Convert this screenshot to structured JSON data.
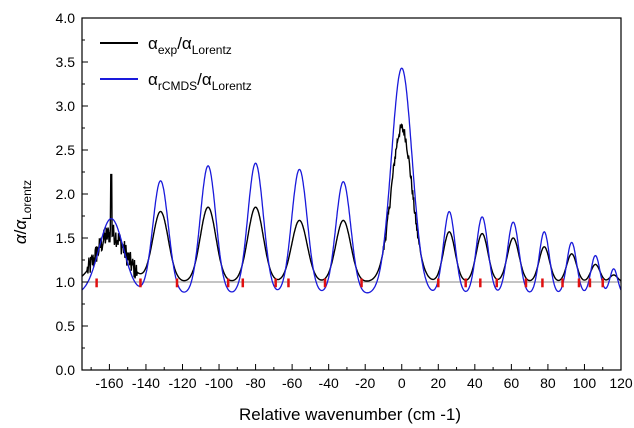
{
  "chart_data": {
    "type": "line",
    "title": "",
    "xlabel": "Relative wavenumber (cm -1)",
    "ylabel": "α/α_Lorentz",
    "xlim": [
      -175,
      120
    ],
    "ylim": [
      0.0,
      4.0
    ],
    "x_ticks": [
      -160,
      -140,
      -120,
      -100,
      -80,
      -60,
      -40,
      -20,
      0,
      20,
      40,
      60,
      80,
      100,
      120
    ],
    "x_tick_labels": [
      "-160",
      "-140",
      "-120",
      "-100",
      "-80",
      "-60",
      "-40",
      "-20",
      "0",
      "20",
      "40",
      "60",
      "80",
      "100",
      "120"
    ],
    "y_ticks": [
      0.0,
      0.5,
      1.0,
      1.5,
      2.0,
      2.5,
      3.0,
      3.5,
      4.0
    ],
    "y_tick_labels": [
      "0.0",
      "0.5",
      "1.0",
      "1.5",
      "2.0",
      "2.5",
      "3.0",
      "3.5",
      "4.0"
    ],
    "reference_line": {
      "y": 1.0,
      "color": "#888888"
    },
    "legend_position": "top-left",
    "grid": false,
    "red_markers_x": [
      -167,
      -143,
      -123,
      -95,
      -87,
      -69,
      -62,
      -42,
      -22,
      20,
      35,
      43,
      52,
      68,
      77,
      88,
      97,
      103,
      110
    ],
    "series": [
      {
        "name": "α_exp/α_Lorentz",
        "color": "#000000",
        "baseline": 1.0,
        "peaks": [
          {
            "x": -159,
            "y": 1.55,
            "w": 11.0
          },
          {
            "x": -132,
            "y": 1.8,
            "w": 6.0
          },
          {
            "x": -106,
            "y": 1.85,
            "w": 6.0
          },
          {
            "x": -80,
            "y": 1.85,
            "w": 6.0
          },
          {
            "x": -56,
            "y": 1.7,
            "w": 6.0
          },
          {
            "x": -32,
            "y": 1.7,
            "w": 5.8
          },
          {
            "x": 0,
            "y": 2.75,
            "w": 8.0
          },
          {
            "x": 26,
            "y": 1.57,
            "w": 4.5
          },
          {
            "x": 44,
            "y": 1.55,
            "w": 4.5
          },
          {
            "x": 61,
            "y": 1.5,
            "w": 4.5
          },
          {
            "x": 78,
            "y": 1.4,
            "w": 4.0
          },
          {
            "x": 93,
            "y": 1.32,
            "w": 3.8
          },
          {
            "x": 106,
            "y": 1.2,
            "w": 3.5
          },
          {
            "x": 116,
            "y": 1.08,
            "w": 3.0
          }
        ],
        "noisy_ranges": [
          {
            "from": -172,
            "to": -145,
            "amplitude": 0.12
          },
          {
            "from": -10,
            "to": 10,
            "amplitude": 0.06
          }
        ],
        "spike": {
          "x": -159,
          "y": 2.22
        }
      },
      {
        "name": "α_rCMDS/α_Lorentz",
        "color": "#1a1adb",
        "baseline": 0.86,
        "peaks": [
          {
            "x": -159,
            "y": 1.72,
            "w": 9.5
          },
          {
            "x": -132,
            "y": 2.15,
            "w": 6.0
          },
          {
            "x": -106,
            "y": 2.32,
            "w": 6.0
          },
          {
            "x": -80,
            "y": 2.35,
            "w": 6.0
          },
          {
            "x": -56,
            "y": 2.28,
            "w": 6.0
          },
          {
            "x": -32,
            "y": 2.14,
            "w": 5.8
          },
          {
            "x": 0,
            "y": 3.43,
            "w": 8.0
          },
          {
            "x": 26,
            "y": 1.8,
            "w": 4.5
          },
          {
            "x": 44,
            "y": 1.74,
            "w": 4.5
          },
          {
            "x": 61,
            "y": 1.68,
            "w": 4.5
          },
          {
            "x": 78,
            "y": 1.57,
            "w": 4.0
          },
          {
            "x": 93,
            "y": 1.45,
            "w": 3.8
          },
          {
            "x": 106,
            "y": 1.3,
            "w": 3.5
          },
          {
            "x": 116,
            "y": 1.15,
            "w": 3.0
          }
        ]
      }
    ]
  }
}
